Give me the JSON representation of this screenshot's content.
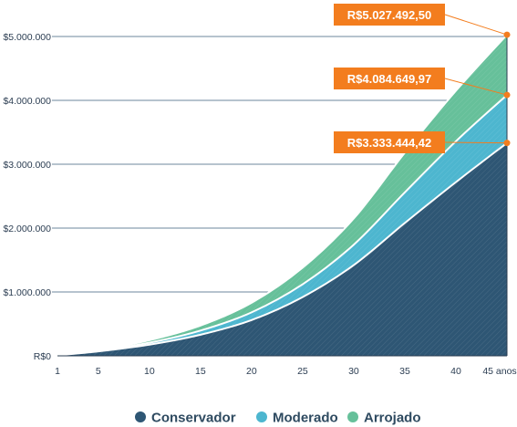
{
  "chart_data": {
    "type": "area",
    "title": "",
    "xlabel": "",
    "ylabel": "",
    "x_ticks": [
      "1",
      "5",
      "10",
      "15",
      "20",
      "25",
      "30",
      "35",
      "40",
      "45 anos"
    ],
    "y_ticks": [
      "R$0",
      "$1.000.000",
      "$2.000.000",
      "$3.000.000",
      "$4.000.000",
      "$5.000.000"
    ],
    "x_range": [
      1,
      45
    ],
    "ylim": [
      0,
      5000000
    ],
    "grid": true,
    "legend_position": "bottom",
    "series": [
      {
        "name": "Conservador",
        "color": "#2e5674",
        "x": [
          1,
          5,
          10,
          15,
          20,
          25,
          30,
          35,
          40,
          45
        ],
        "values": [
          10000,
          70000,
          175000,
          330000,
          560000,
          920000,
          1420000,
          2080000,
          2720000,
          3333444.42
        ],
        "final_label": "R$3.333.444,42"
      },
      {
        "name": "Moderado",
        "color": "#4db6cf",
        "x": [
          1,
          5,
          10,
          15,
          20,
          25,
          30,
          35,
          40,
          45
        ],
        "values": [
          10000,
          80000,
          205000,
          395000,
          680000,
          1120000,
          1740000,
          2560000,
          3360000,
          4084649.97
        ],
        "final_label": "R$4.084.649,97"
      },
      {
        "name": "Arrojado",
        "color": "#66c09a",
        "x": [
          1,
          5,
          10,
          15,
          20,
          25,
          30,
          35,
          40,
          45
        ],
        "values": [
          10000,
          90000,
          245000,
          475000,
          830000,
          1380000,
          2150000,
          3180000,
          4150000,
          5027492.5
        ],
        "final_label": "R$5.027.492,50"
      }
    ],
    "callout_color": "#f37d1e"
  }
}
